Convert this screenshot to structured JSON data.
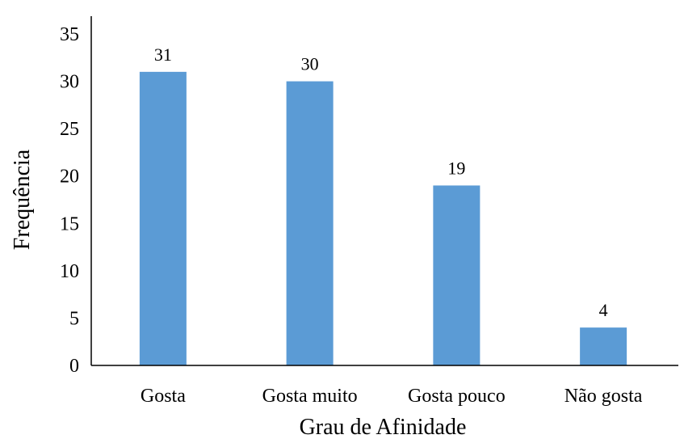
{
  "chart_data": {
    "type": "bar",
    "categories": [
      "Gosta",
      "Gosta muito",
      "Gosta pouco",
      "Não gosta"
    ],
    "values": [
      31,
      30,
      19,
      4
    ],
    "data_labels": [
      "31",
      "30",
      "19",
      "4"
    ],
    "xlabel": "Grau de Afinidade",
    "ylabel": "Frequência",
    "ylim": [
      0,
      35
    ],
    "yticks": [
      0,
      5,
      10,
      15,
      20,
      25,
      30,
      35
    ],
    "ytick_labels": [
      "0",
      "5",
      "10",
      "15",
      "20",
      "25",
      "30",
      "35"
    ],
    "grid": false,
    "legend": "none",
    "bar_color": "#5b9bd5",
    "axis_color": "#000000"
  }
}
